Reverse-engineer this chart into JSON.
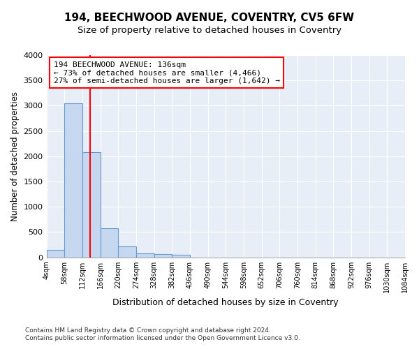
{
  "title1": "194, BEECHWOOD AVENUE, COVENTRY, CV5 6FW",
  "title2": "Size of property relative to detached houses in Coventry",
  "xlabel": "Distribution of detached houses by size in Coventry",
  "ylabel": "Number of detached properties",
  "bin_edges": [
    4,
    58,
    112,
    166,
    220,
    274,
    328,
    382,
    436,
    490,
    544,
    598,
    652,
    706,
    760,
    814,
    868,
    922,
    976,
    1030,
    1084
  ],
  "bar_heights": [
    150,
    3050,
    2075,
    570,
    210,
    80,
    60,
    50,
    0,
    0,
    0,
    0,
    0,
    0,
    0,
    0,
    0,
    0,
    0,
    0
  ],
  "bar_color": "#c5d8f0",
  "bar_edge_color": "#6699cc",
  "red_line_x": 136,
  "annotation_text": "194 BEECHWOOD AVENUE: 136sqm\n← 73% of detached houses are smaller (4,466)\n27% of semi-detached houses are larger (1,642) →",
  "annotation_box_color": "white",
  "annotation_box_edge": "red",
  "ylim": [
    0,
    4000
  ],
  "yticks": [
    0,
    500,
    1000,
    1500,
    2000,
    2500,
    3000,
    3500,
    4000
  ],
  "footer1": "Contains HM Land Registry data © Crown copyright and database right 2024.",
  "footer2": "Contains public sector information licensed under the Open Government Licence v3.0.",
  "bg_color": "#ffffff",
  "plot_bg_color": "#e8eef8",
  "grid_color": "#ffffff",
  "title1_fontsize": 11,
  "title2_fontsize": 9.5
}
